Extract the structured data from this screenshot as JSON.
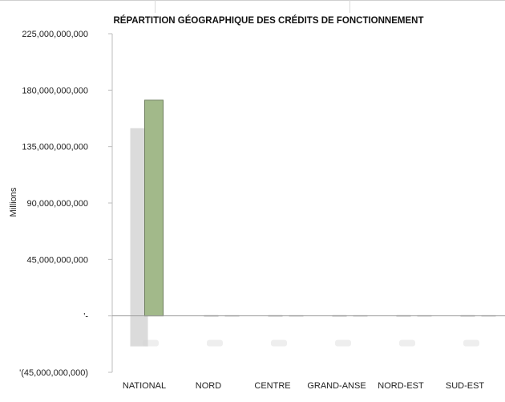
{
  "chart_data": {
    "type": "bar",
    "title": "RÉPARTITION GÉOGRAPHIQUE DES CRÉDITS DE FONCTIONNEMENT",
    "ylabel": "Millions",
    "xlabel": "",
    "categories": [
      "NATIONAL",
      "NORD",
      "CENTRE",
      "GRAND-ANSE",
      "NORD-EST",
      "SUD-EST"
    ],
    "values": [
      172000000000,
      0,
      0,
      0,
      0,
      0
    ],
    "ylim": [
      -45000000000,
      225000000000
    ],
    "yticks": [
      225000000000,
      180000000000,
      135000000000,
      90000000000,
      45000000000,
      0,
      -45000000000
    ],
    "ytick_labels": [
      "225,000,000,000",
      "180,000,000,000",
      "135,000,000,000",
      "90,000,000,000",
      "45,000,000,000",
      "'-",
      "'(45,000,000,000)"
    ],
    "legend": false,
    "grid": false,
    "bar_color": "#a2b98a"
  }
}
